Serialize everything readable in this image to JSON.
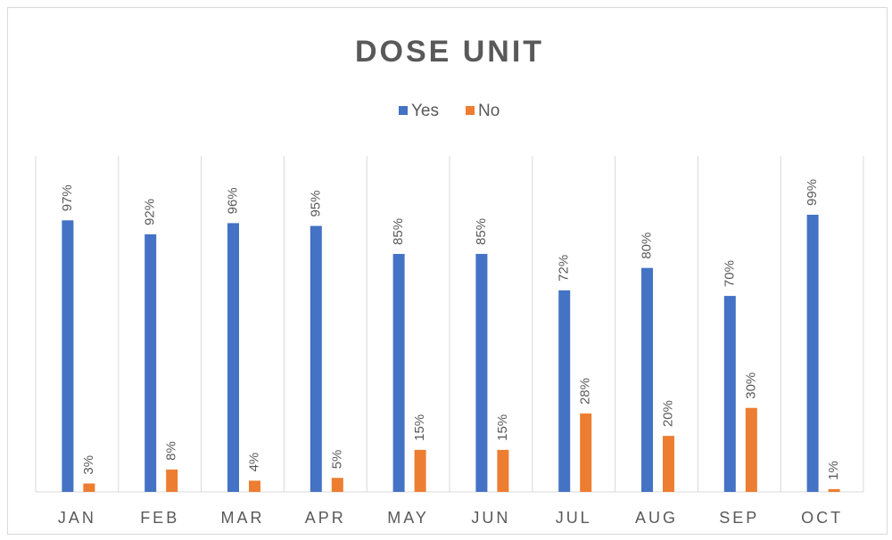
{
  "chart_data": {
    "type": "bar",
    "title": "DOSE UNIT",
    "categories": [
      "JAN",
      "FEB",
      "MAR",
      "APR",
      "MAY",
      "JUN",
      "JUL",
      "AUG",
      "SEP",
      "OCT"
    ],
    "series": [
      {
        "name": "Yes",
        "color": "#4472c4",
        "values": [
          97,
          92,
          96,
          95,
          85,
          85,
          72,
          80,
          70,
          99
        ],
        "value_labels": [
          "97%",
          "92%",
          "96%",
          "95%",
          "85%",
          "85%",
          "72%",
          "80%",
          "70%",
          "99%"
        ]
      },
      {
        "name": "No",
        "color": "#ed7d31",
        "values": [
          3,
          8,
          4,
          5,
          15,
          15,
          28,
          20,
          30,
          1
        ],
        "value_labels": [
          "3%",
          "8%",
          "4%",
          "5%",
          "15%",
          "15%",
          "28%",
          "20%",
          "30%",
          "1%"
        ]
      }
    ],
    "ylim": [
      0,
      120
    ],
    "legend": "top"
  }
}
